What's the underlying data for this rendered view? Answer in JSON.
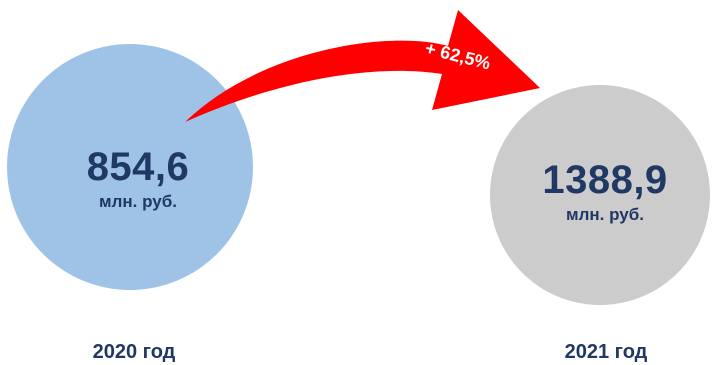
{
  "periods": [
    {
      "value": "854,6",
      "unit": "млн. руб.",
      "year": "2020 год",
      "color": "#9fc3e7"
    },
    {
      "value": "1388,9",
      "unit": "млн. руб.",
      "year": "2021 год",
      "color": "#cccccc"
    }
  ],
  "change": {
    "label": "+ 62,5%",
    "color": "#ff0000"
  },
  "text_color": "#1f3864"
}
